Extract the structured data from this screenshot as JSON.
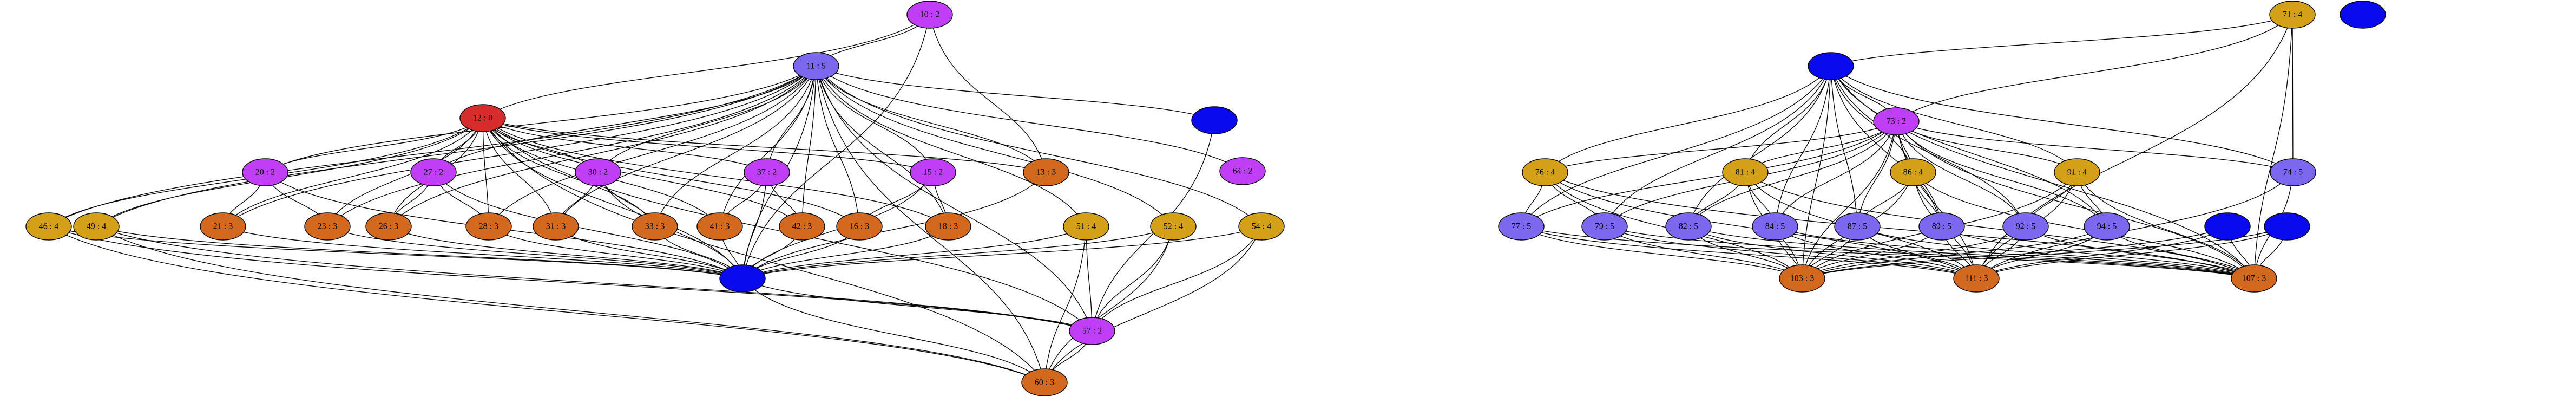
{
  "colors": {
    "red": "#d62c2c",
    "purple": "#c13ef7",
    "violet": "#7b68ee",
    "orange": "#d2691e",
    "gold": "#d4a017",
    "blue": "#0a0aee"
  },
  "nodes": [
    {
      "id": "10",
      "label": "10 : 2",
      "color": "purple"
    },
    {
      "id": "11",
      "label": "11 : 5",
      "color": "violet"
    },
    {
      "id": "12",
      "label": "12 : 0",
      "color": "red"
    },
    {
      "id": "b1",
      "label": "",
      "color": "blue"
    },
    {
      "id": "64",
      "label": "64 : 2",
      "color": "purple"
    },
    {
      "id": "20",
      "label": "20 : 2",
      "color": "purple"
    },
    {
      "id": "27",
      "label": "27 : 2",
      "color": "purple"
    },
    {
      "id": "30",
      "label": "30 : 2",
      "color": "purple"
    },
    {
      "id": "37",
      "label": "37 : 2",
      "color": "purple"
    },
    {
      "id": "15",
      "label": "15 : 2",
      "color": "purple"
    },
    {
      "id": "13",
      "label": "13 : 3",
      "color": "orange"
    },
    {
      "id": "46",
      "label": "46 : 4",
      "color": "gold"
    },
    {
      "id": "49",
      "label": "49 : 4",
      "color": "gold"
    },
    {
      "id": "21",
      "label": "21 : 3",
      "color": "orange"
    },
    {
      "id": "23",
      "label": "23 : 3",
      "color": "orange"
    },
    {
      "id": "26",
      "label": "26 : 3",
      "color": "orange"
    },
    {
      "id": "28",
      "label": "28 : 3",
      "color": "orange"
    },
    {
      "id": "31",
      "label": "31 : 3",
      "color": "orange"
    },
    {
      "id": "33",
      "label": "33 : 3",
      "color": "orange"
    },
    {
      "id": "41",
      "label": "41 : 3",
      "color": "orange"
    },
    {
      "id": "42",
      "label": "42 : 3",
      "color": "orange"
    },
    {
      "id": "16",
      "label": "16 : 3",
      "color": "orange"
    },
    {
      "id": "18",
      "label": "18 : 3",
      "color": "orange"
    },
    {
      "id": "51",
      "label": "51 : 4",
      "color": "gold"
    },
    {
      "id": "52",
      "label": "52 : 4",
      "color": "gold"
    },
    {
      "id": "54",
      "label": "54 : 4",
      "color": "gold"
    },
    {
      "id": "b2",
      "label": "",
      "color": "blue"
    },
    {
      "id": "57",
      "label": "57 : 2",
      "color": "purple"
    },
    {
      "id": "60",
      "label": "60 : 3",
      "color": "orange"
    },
    {
      "id": "71",
      "label": "71 : 4",
      "color": "gold"
    },
    {
      "id": "b3",
      "label": "",
      "color": "blue"
    },
    {
      "id": "b4",
      "label": "",
      "color": "blue"
    },
    {
      "id": "73",
      "label": "73 : 2",
      "color": "purple"
    },
    {
      "id": "76",
      "label": "76 : 4",
      "color": "gold"
    },
    {
      "id": "81",
      "label": "81 : 4",
      "color": "gold"
    },
    {
      "id": "86",
      "label": "86 : 4",
      "color": "gold"
    },
    {
      "id": "91",
      "label": "91 : 4",
      "color": "gold"
    },
    {
      "id": "74",
      "label": "74 : 5",
      "color": "violet"
    },
    {
      "id": "77",
      "label": "77 : 5",
      "color": "violet"
    },
    {
      "id": "79",
      "label": "79 : 5",
      "color": "violet"
    },
    {
      "id": "82",
      "label": "82 : 5",
      "color": "violet"
    },
    {
      "id": "84",
      "label": "84 : 5",
      "color": "violet"
    },
    {
      "id": "87",
      "label": "87 : 5",
      "color": "violet"
    },
    {
      "id": "89",
      "label": "89 : 5",
      "color": "violet"
    },
    {
      "id": "92",
      "label": "92 : 5",
      "color": "violet"
    },
    {
      "id": "94",
      "label": "94 : 5",
      "color": "violet"
    },
    {
      "id": "b5",
      "label": "",
      "color": "blue"
    },
    {
      "id": "b6",
      "label": "",
      "color": "blue"
    },
    {
      "id": "103",
      "label": "103 : 3",
      "color": "orange"
    },
    {
      "id": "111",
      "label": "111 : 3",
      "color": "orange"
    },
    {
      "id": "107",
      "label": "107 : 3",
      "color": "orange"
    }
  ],
  "edges": [
    [
      "10",
      "11"
    ],
    [
      "10",
      "12"
    ],
    [
      "10",
      "13"
    ],
    [
      "10",
      "b2"
    ],
    [
      "11",
      "46"
    ],
    [
      "11",
      "49"
    ],
    [
      "11",
      "20"
    ],
    [
      "11",
      "21"
    ],
    [
      "11",
      "23"
    ],
    [
      "11",
      "26"
    ],
    [
      "11",
      "27"
    ],
    [
      "11",
      "28"
    ],
    [
      "11",
      "30"
    ],
    [
      "11",
      "31"
    ],
    [
      "11",
      "33"
    ],
    [
      "11",
      "37"
    ],
    [
      "11",
      "41"
    ],
    [
      "11",
      "42"
    ],
    [
      "11",
      "16"
    ],
    [
      "11",
      "15"
    ],
    [
      "11",
      "18"
    ],
    [
      "11",
      "13"
    ],
    [
      "11",
      "b1"
    ],
    [
      "11",
      "51"
    ],
    [
      "11",
      "52"
    ],
    [
      "11",
      "54"
    ],
    [
      "11",
      "57"
    ],
    [
      "11",
      "60"
    ],
    [
      "11",
      "64"
    ],
    [
      "11",
      "b2"
    ],
    [
      "12",
      "46"
    ],
    [
      "12",
      "49"
    ],
    [
      "12",
      "20"
    ],
    [
      "12",
      "21"
    ],
    [
      "12",
      "23"
    ],
    [
      "12",
      "26"
    ],
    [
      "12",
      "27"
    ],
    [
      "12",
      "28"
    ],
    [
      "12",
      "30"
    ],
    [
      "12",
      "31"
    ],
    [
      "12",
      "33"
    ],
    [
      "12",
      "37"
    ],
    [
      "12",
      "41"
    ],
    [
      "12",
      "42"
    ],
    [
      "12",
      "16"
    ],
    [
      "12",
      "15"
    ],
    [
      "12",
      "18"
    ],
    [
      "12",
      "13"
    ],
    [
      "12",
      "b2"
    ],
    [
      "12",
      "57"
    ],
    [
      "12",
      "60"
    ],
    [
      "20",
      "21"
    ],
    [
      "20",
      "23"
    ],
    [
      "20",
      "b2"
    ],
    [
      "27",
      "26"
    ],
    [
      "27",
      "28"
    ],
    [
      "27",
      "b2"
    ],
    [
      "30",
      "31"
    ],
    [
      "30",
      "33"
    ],
    [
      "30",
      "b2"
    ],
    [
      "37",
      "41"
    ],
    [
      "37",
      "42"
    ],
    [
      "37",
      "b2"
    ],
    [
      "15",
      "16"
    ],
    [
      "15",
      "18"
    ],
    [
      "15",
      "b2"
    ],
    [
      "46",
      "b2"
    ],
    [
      "46",
      "57"
    ],
    [
      "46",
      "60"
    ],
    [
      "49",
      "b2"
    ],
    [
      "49",
      "57"
    ],
    [
      "49",
      "60"
    ],
    [
      "21",
      "b2"
    ],
    [
      "23",
      "b2"
    ],
    [
      "26",
      "b2"
    ],
    [
      "28",
      "b2"
    ],
    [
      "31",
      "b2"
    ],
    [
      "33",
      "b2"
    ],
    [
      "41",
      "b2"
    ],
    [
      "42",
      "b2"
    ],
    [
      "16",
      "b2"
    ],
    [
      "18",
      "b2"
    ],
    [
      "13",
      "b2"
    ],
    [
      "51",
      "b2"
    ],
    [
      "51",
      "57"
    ],
    [
      "51",
      "60"
    ],
    [
      "52",
      "b2"
    ],
    [
      "52",
      "57"
    ],
    [
      "52",
      "60"
    ],
    [
      "54",
      "b2"
    ],
    [
      "54",
      "57"
    ],
    [
      "54",
      "60"
    ],
    [
      "b1",
      "57"
    ],
    [
      "b2",
      "57"
    ],
    [
      "b2",
      "60"
    ],
    [
      "57",
      "60"
    ],
    [
      "71",
      "b3"
    ],
    [
      "71",
      "73"
    ],
    [
      "71",
      "74"
    ],
    [
      "71",
      "111"
    ],
    [
      "71",
      "107"
    ],
    [
      "b3",
      "73"
    ],
    [
      "b3",
      "76"
    ],
    [
      "b3",
      "77"
    ],
    [
      "b3",
      "79"
    ],
    [
      "b3",
      "81"
    ],
    [
      "b3",
      "82"
    ],
    [
      "b3",
      "84"
    ],
    [
      "b3",
      "86"
    ],
    [
      "b3",
      "87"
    ],
    [
      "b3",
      "89"
    ],
    [
      "b3",
      "91"
    ],
    [
      "b3",
      "92"
    ],
    [
      "b3",
      "94"
    ],
    [
      "b3",
      "74"
    ],
    [
      "b3",
      "103"
    ],
    [
      "b3",
      "107"
    ],
    [
      "73",
      "76"
    ],
    [
      "73",
      "77"
    ],
    [
      "73",
      "79"
    ],
    [
      "73",
      "81"
    ],
    [
      "73",
      "82"
    ],
    [
      "73",
      "84"
    ],
    [
      "73",
      "86"
    ],
    [
      "73",
      "87"
    ],
    [
      "73",
      "89"
    ],
    [
      "73",
      "91"
    ],
    [
      "73",
      "92"
    ],
    [
      "73",
      "94"
    ],
    [
      "73",
      "74"
    ],
    [
      "73",
      "103"
    ],
    [
      "73",
      "111"
    ],
    [
      "73",
      "107"
    ],
    [
      "76",
      "77"
    ],
    [
      "76",
      "79"
    ],
    [
      "76",
      "103"
    ],
    [
      "76",
      "111"
    ],
    [
      "76",
      "107"
    ],
    [
      "81",
      "82"
    ],
    [
      "81",
      "84"
    ],
    [
      "81",
      "103"
    ],
    [
      "81",
      "111"
    ],
    [
      "81",
      "107"
    ],
    [
      "86",
      "87"
    ],
    [
      "86",
      "89"
    ],
    [
      "86",
      "103"
    ],
    [
      "86",
      "111"
    ],
    [
      "86",
      "107"
    ],
    [
      "91",
      "92"
    ],
    [
      "91",
      "94"
    ],
    [
      "91",
      "103"
    ],
    [
      "91",
      "111"
    ],
    [
      "91",
      "107"
    ],
    [
      "74",
      "111"
    ],
    [
      "74",
      "107"
    ],
    [
      "77",
      "103"
    ],
    [
      "77",
      "111"
    ],
    [
      "77",
      "107"
    ],
    [
      "79",
      "103"
    ],
    [
      "79",
      "111"
    ],
    [
      "79",
      "107"
    ],
    [
      "82",
      "103"
    ],
    [
      "82",
      "111"
    ],
    [
      "82",
      "107"
    ],
    [
      "84",
      "103"
    ],
    [
      "84",
      "111"
    ],
    [
      "84",
      "107"
    ],
    [
      "87",
      "103"
    ],
    [
      "87",
      "111"
    ],
    [
      "87",
      "107"
    ],
    [
      "89",
      "103"
    ],
    [
      "89",
      "111"
    ],
    [
      "89",
      "107"
    ],
    [
      "92",
      "103"
    ],
    [
      "92",
      "111"
    ],
    [
      "92",
      "107"
    ],
    [
      "94",
      "103"
    ],
    [
      "94",
      "111"
    ],
    [
      "94",
      "107"
    ],
    [
      "b5",
      "103"
    ],
    [
      "b5",
      "111"
    ],
    [
      "b5",
      "107"
    ],
    [
      "b6",
      "103"
    ],
    [
      "b6",
      "111"
    ],
    [
      "b6",
      "107"
    ]
  ]
}
